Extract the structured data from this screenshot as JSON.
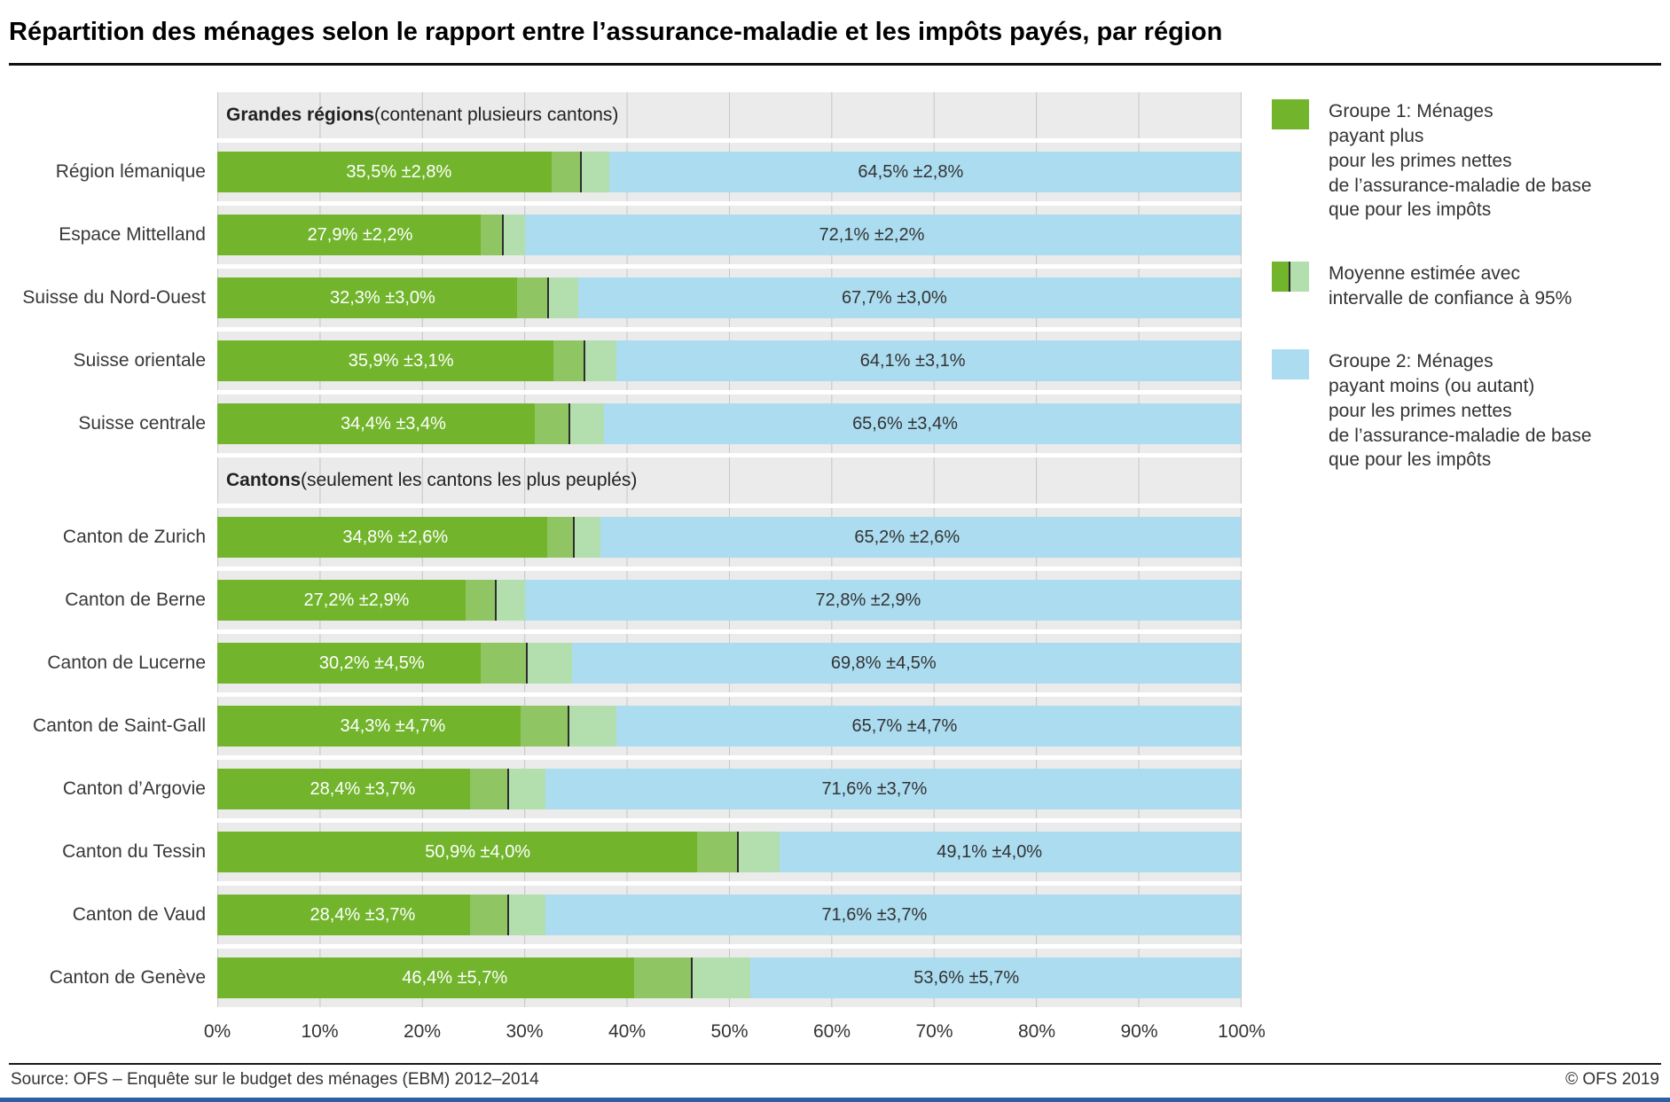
{
  "colors": {
    "green": "#72b52d",
    "blue": "#abdcf0",
    "ci_left": "#90c564",
    "ci_right": "#b2dfad",
    "mean": "#2e2e2e",
    "plot_bg": "#ebebeb",
    "grid": "#c6c6c6",
    "bottom_bar": "#2d5fa5"
  },
  "legend": {
    "items": [
      {
        "name": "group1",
        "text": "Groupe 1: Ménages\npayant plus\npour les primes nettes\nde l’assurance-maladie de base\nque pour les impôts"
      },
      {
        "name": "confidence-interval",
        "text": "Moyenne estimée avec\nintervalle de confiance à 95%"
      },
      {
        "name": "group2",
        "text": "Groupe 2: Ménages\npayant moins (ou autant)\npour les primes nettes\nde l’assurance-maladie de base\nque pour les impôts"
      }
    ]
  },
  "footer": {
    "source": "Source: OFS – Enquête sur le budget des ménages (EBM) 2012–2014",
    "copyright": "© OFS 2019"
  },
  "chart_data": {
    "type": "bar",
    "orientation": "horizontal",
    "stacked": true,
    "title": "Répartition des ménages selon le rapport entre l’assurance-maladie et les impôts payés, par région",
    "unit": "%",
    "grid": true,
    "legend_position": "right",
    "x_axis": {
      "min": 0,
      "max": 100,
      "tick_step": 10,
      "tick_labels": [
        "0%",
        "10%",
        "20%",
        "30%",
        "40%",
        "50%",
        "60%",
        "70%",
        "80%",
        "90%",
        "100%"
      ]
    },
    "series": [
      {
        "name": "Groupe 1: Ménages payant plus pour les primes nettes de l’assurance-maladie de base que pour les impôts"
      },
      {
        "name": "Groupe 2: Ménages payant moins (ou autant) pour les primes nettes de l’assurance-maladie de base que pour les impôts"
      }
    ],
    "sections": [
      {
        "header_bold": "Grandes régions",
        "header_rest": " (contenant plusieurs cantons)",
        "rows": [
          {
            "label": "Région lémanique",
            "group1": 35.5,
            "group2": 64.5,
            "ci": 2.8,
            "group1_label": "35,5% ±2,8%",
            "group2_label": "64,5% ±2,8%"
          },
          {
            "label": "Espace Mittelland",
            "group1": 27.9,
            "group2": 72.1,
            "ci": 2.2,
            "group1_label": "27,9% ±2,2%",
            "group2_label": "72,1% ±2,2%"
          },
          {
            "label": "Suisse du Nord-Ouest",
            "group1": 32.3,
            "group2": 67.7,
            "ci": 3.0,
            "group1_label": "32,3% ±3,0%",
            "group2_label": "67,7% ±3,0%"
          },
          {
            "label": "Suisse orientale",
            "group1": 35.9,
            "group2": 64.1,
            "ci": 3.1,
            "group1_label": "35,9% ±3,1%",
            "group2_label": "64,1% ±3,1%"
          },
          {
            "label": "Suisse centrale",
            "group1": 34.4,
            "group2": 65.6,
            "ci": 3.4,
            "group1_label": "34,4% ±3,4%",
            "group2_label": "65,6% ±3,4%"
          }
        ]
      },
      {
        "header_bold": "Cantons",
        "header_rest": " (seulement les cantons les plus peuplés)",
        "rows": [
          {
            "label": "Canton de Zurich",
            "group1": 34.8,
            "group2": 65.2,
            "ci": 2.6,
            "group1_label": "34,8% ±2,6%",
            "group2_label": "65,2% ±2,6%"
          },
          {
            "label": "Canton de Berne",
            "group1": 27.2,
            "group2": 72.8,
            "ci": 2.9,
            "group1_label": "27,2% ±2,9%",
            "group2_label": "72,8% ±2,9%"
          },
          {
            "label": "Canton de Lucerne",
            "group1": 30.2,
            "group2": 69.8,
            "ci": 4.5,
            "group1_label": "30,2% ±4,5%",
            "group2_label": "69,8% ±4,5%"
          },
          {
            "label": "Canton de Saint-Gall",
            "group1": 34.3,
            "group2": 65.7,
            "ci": 4.7,
            "group1_label": "34,3% ±4,7%",
            "group2_label": "65,7% ±4,7%"
          },
          {
            "label": "Canton d’Argovie",
            "group1": 28.4,
            "group2": 71.6,
            "ci": 3.7,
            "group1_label": "28,4% ±3,7%",
            "group2_label": "71,6% ±3,7%"
          },
          {
            "label": "Canton du Tessin",
            "group1": 50.9,
            "group2": 49.1,
            "ci": 4.0,
            "group1_label": "50,9% ±4,0%",
            "group2_label": "49,1% ±4,0%"
          },
          {
            "label": "Canton de Vaud",
            "group1": 28.4,
            "group2": 71.6,
            "ci": 3.7,
            "group1_label": "28,4% ±3,7%",
            "group2_label": "71,6% ±3,7%"
          },
          {
            "label": "Canton de Genève",
            "group1": 46.4,
            "group2": 53.6,
            "ci": 5.7,
            "group1_label": "46,4% ±5,7%",
            "group2_label": "53,6% ±5,7%"
          }
        ]
      }
    ]
  }
}
